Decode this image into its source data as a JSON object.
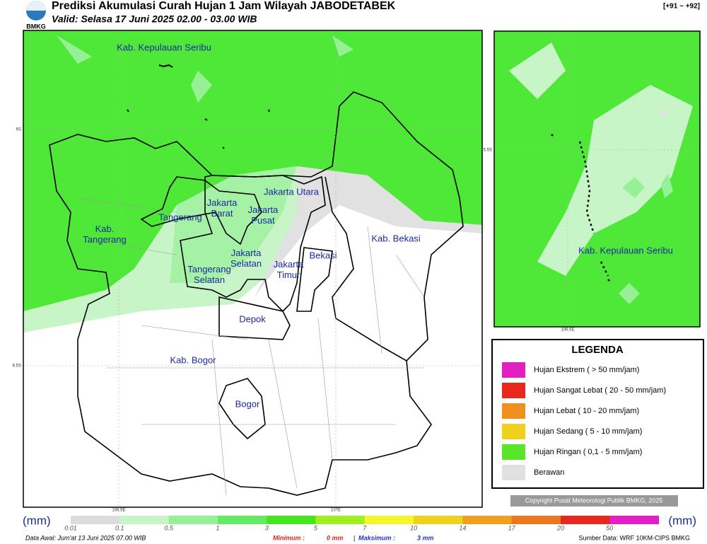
{
  "header": {
    "logo": "BMKG",
    "title": "Prediksi Akumulasi Curah Hujan 1 Jam Wilayah JABODETABEK",
    "valid": "Valid: Selasa 17 Juni 2025 02.00 - 03.00 WIB",
    "range": "[+91 ~ +92]"
  },
  "map": {
    "regions": [
      [
        "Kab. Kepulauan Seribu"
      ],
      [
        "Kab.",
        "Tangerang"
      ],
      [
        "Tangerang"
      ],
      [
        "Jakarta",
        "Barat"
      ],
      [
        "Jakarta Utara"
      ],
      [
        "Jakarta",
        "Pusat"
      ],
      [
        "Jakarta",
        "Selatan"
      ],
      [
        "Jakarta",
        "Timur"
      ],
      [
        "Tangerang",
        "Selatan"
      ],
      [
        "Bekasi"
      ],
      [
        "Kab. Bekasi"
      ],
      [
        "Depok"
      ],
      [
        "Kab. Bogor"
      ],
      [
        "Bogor"
      ]
    ],
    "lat_labels": [
      "6S",
      "6.5S"
    ],
    "lon_labels": [
      "106.5E",
      "107E"
    ]
  },
  "inset": {
    "region": "Kab. Kepulauan Seribu",
    "lat_label": "5.5S",
    "lon_label": "106.5E"
  },
  "legend": {
    "title": "LEGENDA",
    "items": [
      {
        "label": "Hujan Ekstrem ( > 50 mm/jam)",
        "color": "#e020c0"
      },
      {
        "label": "Hujan Sangat Lebat ( 20 - 50 mm/jam)",
        "color": "#e8281e"
      },
      {
        "label": "Hujan Lebat ( 10 - 20 mm/jam)",
        "color": "#f0901e"
      },
      {
        "label": "Hujan Sedang ( 5 - 10 mm/jam)",
        "color": "#f0d21e"
      },
      {
        "label": "Hujan Ringan ( 0,1 - 5 mm/jam)",
        "color": "#5ae628"
      },
      {
        "label": "Berawan",
        "color": "#e1e1e1"
      }
    ]
  },
  "copyright": "Copyright Pusat Meteorologi Publik BMKG, 2025",
  "colorbar": {
    "unit": "(mm)",
    "ticks": [
      "0.01",
      "0.1",
      "0.5",
      "1",
      "3",
      "5",
      "7",
      "10",
      "14",
      "17",
      "20",
      "50"
    ],
    "colors": [
      "#dcdcdc",
      "#c8f5c8",
      "#96f096",
      "#64eb64",
      "#46e61e",
      "#a0f01e",
      "#f5f528",
      "#f0d21e",
      "#f0a01e",
      "#eb781e",
      "#e8281e",
      "#e61ec8"
    ]
  },
  "footer": {
    "data_awal": "Data Awal: Jum'at 13 Juni 2025 07.00 WIB",
    "min_label": "Minimum :",
    "min_value": "0 mm",
    "separator": "|",
    "max_label": "Maksimum :",
    "max_value": "3 mm",
    "source": "Sumber Data: WRF 10KM-CIPS BMKG"
  }
}
